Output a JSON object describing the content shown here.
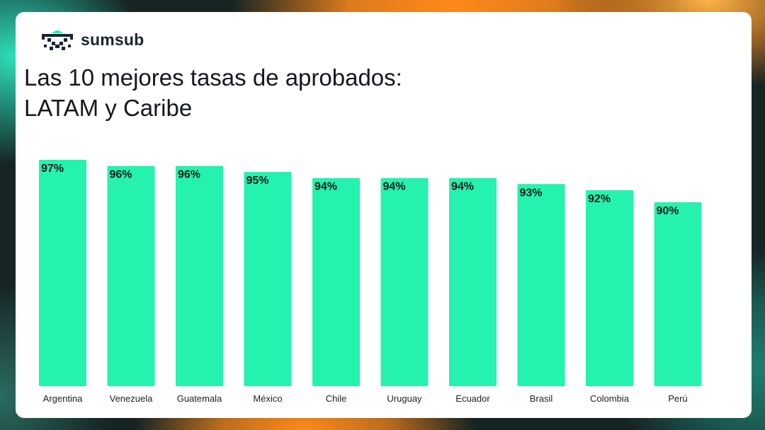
{
  "brand": {
    "name": "sumsub",
    "logo_icon": "sumsub-logo-icon",
    "accent": "#25F2AE"
  },
  "title": {
    "line1": "Las 10 mejores tasas de aprobados:",
    "line2": "LATAM y Caribe"
  },
  "chart_data": {
    "type": "bar",
    "title": "Las 10 mejores tasas de aprobados: LATAM y Caribe",
    "categories": [
      "Argentina",
      "Venezuela",
      "Guatemala",
      "México",
      "Chile",
      "Uruguay",
      "Ecuador",
      "Brasil",
      "Colombia",
      "Perú"
    ],
    "values": [
      97,
      96,
      96,
      95,
      94,
      94,
      94,
      93,
      92,
      90
    ],
    "value_labels": [
      "97%",
      "96%",
      "96%",
      "95%",
      "94%",
      "94%",
      "94%",
      "93%",
      "92%",
      "90%"
    ],
    "xlabel": "",
    "ylabel": "",
    "grid": false,
    "bar_color": "#25F2AE"
  }
}
